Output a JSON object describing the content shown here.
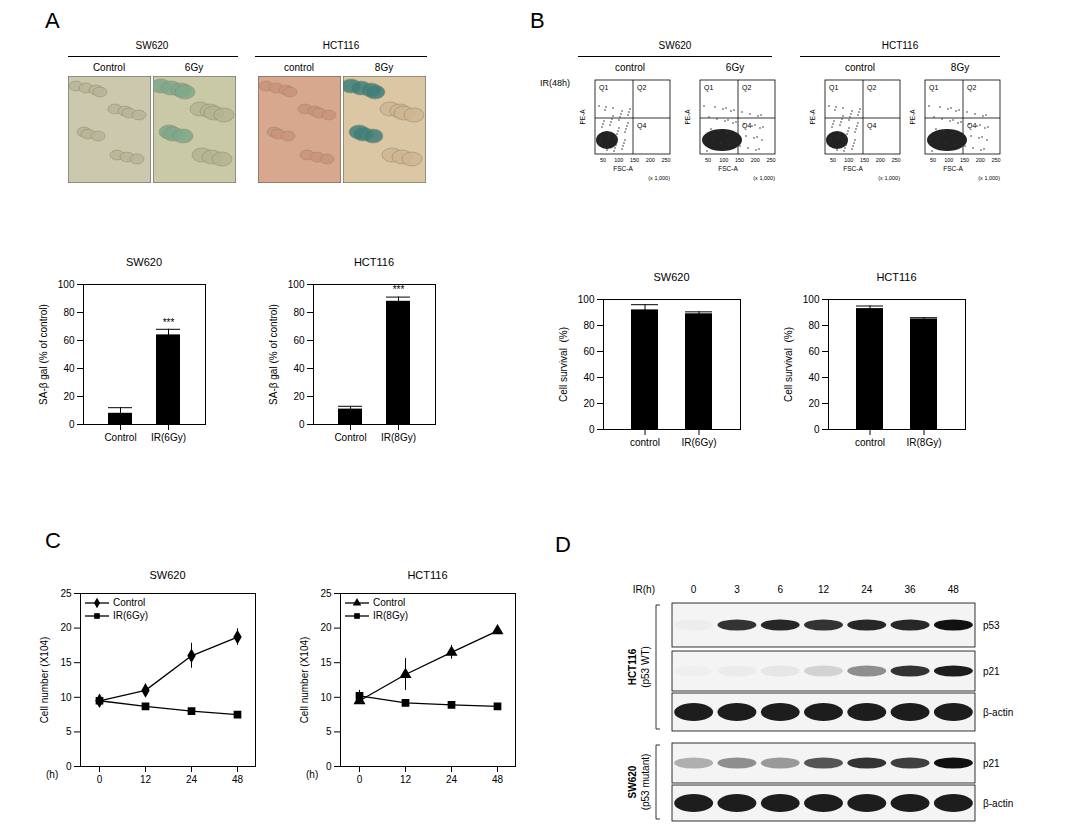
{
  "panel_labels": [
    "A",
    "B",
    "C",
    "D"
  ],
  "micrographs": [
    {
      "title": "SW620",
      "conditions": [
        "Control",
        "6Gy"
      ]
    },
    {
      "title": "HCT116",
      "conditions": [
        "control",
        "8Gy"
      ]
    }
  ],
  "flow": {
    "treatment": "IR(48h)",
    "groups": [
      {
        "title": "SW620",
        "conditions": [
          "control",
          "6Gy"
        ]
      },
      {
        "title": "HCT116",
        "conditions": [
          "control",
          "8Gy"
        ]
      }
    ],
    "x_label": "FSC-A",
    "y_label": "PE-A",
    "x_ticks": [
      "50",
      "100",
      "150",
      "200",
      "250"
    ],
    "x_unit": "(x 1,000)",
    "quadrants": [
      "Q1",
      "Q2",
      "Q4"
    ]
  },
  "blot": {
    "time_label": "IR(h)",
    "times": [
      "0",
      "3",
      "6",
      "12",
      "24",
      "36",
      "48"
    ],
    "groups": [
      {
        "cell_line": "HCT116",
        "note": "(p53 WT)",
        "rows": [
          {
            "protein": "p53",
            "intensity": [
              0.03,
              0.85,
              0.9,
              0.85,
              0.9,
              0.9,
              1.0
            ]
          },
          {
            "protein": "p21",
            "intensity": [
              0.02,
              0.04,
              0.06,
              0.15,
              0.45,
              0.85,
              0.95
            ]
          },
          {
            "protein": "β-actin",
            "intensity": [
              0.95,
              0.95,
              0.95,
              0.95,
              0.95,
              0.95,
              0.95
            ]
          }
        ]
      },
      {
        "cell_line": "SW620",
        "note": "(p53 mutant)",
        "rows": [
          {
            "protein": "p21",
            "intensity": [
              0.3,
              0.45,
              0.4,
              0.7,
              0.85,
              0.8,
              1.0
            ]
          },
          {
            "protein": "β-actin",
            "intensity": [
              0.95,
              0.95,
              0.95,
              0.95,
              0.95,
              0.95,
              0.95
            ]
          }
        ]
      }
    ]
  },
  "chart_data": [
    {
      "type": "bar",
      "title": "SW620",
      "y_label": "SA-β gal (% of control)",
      "categories": [
        "Control",
        "IR(6Gy)"
      ],
      "values": [
        8,
        64
      ],
      "errors": [
        4,
        4
      ],
      "color": "#000000",
      "ylim": [
        0,
        100
      ],
      "yticks": [
        0,
        20,
        40,
        60,
        80,
        100
      ],
      "annotations": [
        {
          "category": "IR(6Gy)",
          "text": "***"
        }
      ]
    },
    {
      "type": "bar",
      "title": "HCT116",
      "y_label": "SA-β gal (% of control)",
      "categories": [
        "Control",
        "IR(8Gy)"
      ],
      "values": [
        11,
        88
      ],
      "errors": [
        2,
        3
      ],
      "color": "#000000",
      "ylim": [
        0,
        100
      ],
      "yticks": [
        0,
        20,
        40,
        60,
        80,
        100
      ],
      "annotations": [
        {
          "category": "IR(8Gy)",
          "text": "***"
        }
      ]
    },
    {
      "type": "bar",
      "title": "SW620",
      "y_label": "Cell survival  (%)",
      "categories": [
        "control",
        "IR(6Gy)"
      ],
      "values": [
        92,
        89
      ],
      "errors": [
        4,
        1.5
      ],
      "color": "#000000",
      "ylim": [
        0,
        100
      ],
      "yticks": [
        0,
        20,
        40,
        60,
        80,
        100
      ]
    },
    {
      "type": "bar",
      "title": "HCT116",
      "y_label": "Cell survival  (%)",
      "categories": [
        "control",
        "IR(8Gy)"
      ],
      "values": [
        93,
        85
      ],
      "errors": [
        2,
        1
      ],
      "color": "#000000",
      "ylim": [
        0,
        100
      ],
      "yticks": [
        0,
        20,
        40,
        60,
        80,
        100
      ]
    },
    {
      "type": "line",
      "title": "SW620",
      "x_label": "(h)",
      "y_label": "Cell number (X104)",
      "categories": [
        "0",
        "12",
        "24",
        "48"
      ],
      "ylim": [
        0,
        25
      ],
      "yticks": [
        0,
        5,
        10,
        15,
        20,
        25
      ],
      "legend": "upper left",
      "series": [
        {
          "name": "Control",
          "color": "#000000",
          "marker": "diamond",
          "values": [
            9.5,
            11,
            16,
            18.7
          ],
          "errors": [
            0.3,
            0.4,
            1.8,
            1.2
          ]
        },
        {
          "name": "IR(6Gy)",
          "color": "#000000",
          "marker": "square",
          "values": [
            9.5,
            8.7,
            8,
            7.5
          ],
          "errors": [
            0.3,
            0.3,
            0.3,
            0.3
          ]
        }
      ]
    },
    {
      "type": "line",
      "title": "HCT116",
      "x_label": "(h)",
      "y_label": "Cell number (X104)",
      "categories": [
        "0",
        "12",
        "24",
        "48"
      ],
      "ylim": [
        0,
        25
      ],
      "yticks": [
        0,
        5,
        10,
        15,
        20,
        25
      ],
      "legend": "upper left",
      "series": [
        {
          "name": "Control",
          "color": "#000000",
          "marker": "triangle",
          "values": [
            9.5,
            13.3,
            16.5,
            19.6
          ],
          "errors": [
            0.5,
            2.3,
            1,
            0.3
          ]
        },
        {
          "name": "IR(8Gy)",
          "color": "#000000",
          "marker": "square",
          "values": [
            10.2,
            9.2,
            8.9,
            8.7
          ],
          "errors": [
            0.8,
            0.3,
            0.3,
            0.3
          ]
        }
      ]
    }
  ]
}
